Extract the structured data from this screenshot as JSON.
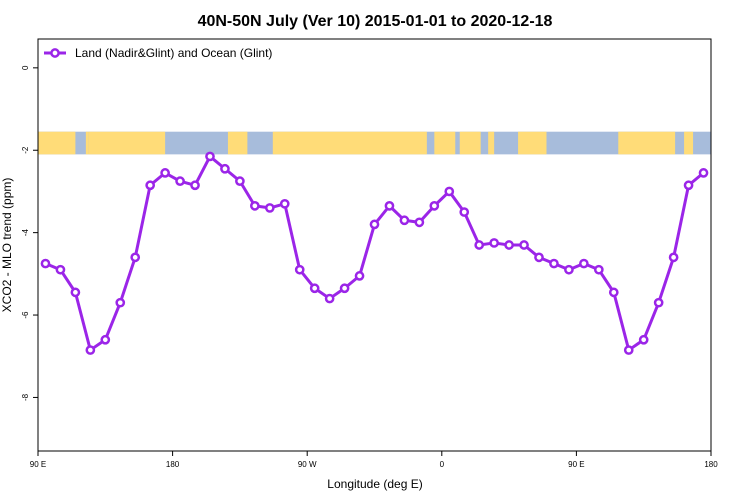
{
  "chart_data": {
    "type": "line",
    "title": "40N-50N July (Ver 10)   2015-01-01 to 2020-12-18",
    "xlabel": "Longitude (deg E)",
    "ylabel": "XCO2 - MLO trend (ppm)",
    "x_ticks": [
      {
        "value": 90,
        "label": "90 E"
      },
      {
        "value": 180,
        "label": "180"
      },
      {
        "value": 270,
        "label": "90 W"
      },
      {
        "value": 360,
        "label": "0"
      },
      {
        "value": 450,
        "label": "90 E"
      },
      {
        "value": 540,
        "label": "180"
      }
    ],
    "y_ticks": [
      {
        "value": 0,
        "label": "0"
      },
      {
        "value": -2,
        "label": "-2"
      },
      {
        "value": -4,
        "label": "-4"
      },
      {
        "value": -6,
        "label": "-6"
      },
      {
        "value": -8,
        "label": "-8"
      }
    ],
    "xlim": [
      90,
      540
    ],
    "ylim": [
      -9.3,
      0.7
    ],
    "grid": false,
    "legend_position": "top-left",
    "map_strip": {
      "y_top": -1.55,
      "y_bottom": -2.1,
      "land_color": "#ffdc78",
      "ocean_color": "#a7bcdb"
    },
    "series": [
      {
        "name": "Land (Nadir&Glint) and Ocean (Glint)",
        "color": "#9b25e8",
        "x": [
          95,
          105,
          115,
          125,
          135,
          145,
          155,
          165,
          175,
          185,
          195,
          205,
          215,
          225,
          235,
          245,
          255,
          265,
          275,
          285,
          295,
          305,
          315,
          325,
          335,
          345,
          355,
          365,
          375,
          385,
          395,
          405,
          415,
          425,
          435,
          445,
          455,
          465,
          475,
          485,
          495,
          505,
          515,
          525,
          535
        ],
        "y": [
          -4.75,
          -4.9,
          -5.45,
          -6.85,
          -6.6,
          -5.7,
          -4.6,
          -2.85,
          -2.55,
          -2.75,
          -2.85,
          -2.15,
          -2.45,
          -2.75,
          -3.35,
          -3.4,
          -3.3,
          -4.9,
          -5.35,
          -5.6,
          -5.35,
          -5.05,
          -3.8,
          -3.35,
          -3.7,
          -3.75,
          -3.35,
          -3.0,
          -3.5,
          -4.3,
          -4.25,
          -4.3,
          -4.3,
          -4.6,
          -4.75,
          -4.9,
          -4.75,
          -4.9,
          -5.45,
          -6.85,
          -6.6,
          -5.7,
          -4.6,
          -2.85,
          -2.55
        ]
      }
    ]
  }
}
